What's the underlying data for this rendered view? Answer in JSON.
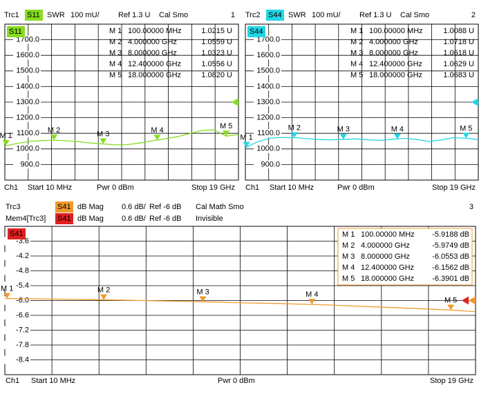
{
  "chart_data": [
    {
      "type": "line",
      "trace": "Trc1",
      "format": "SWR",
      "scale": "100 mU/",
      "ref": "Ref 1.3 U",
      "flags": "Cal Smo",
      "number": "1",
      "ref_value": 1300,
      "channel": "Ch1",
      "start": "Start 10 MHz",
      "power": "Pwr 0 dBm",
      "stop": "Stop 19 GHz",
      "xlim": [
        0.01,
        19
      ],
      "ylim": [
        800,
        1800
      ],
      "yticks": [
        {
          "value": 1700,
          "label": "1700.0"
        },
        {
          "value": 1600,
          "label": "1600.0"
        },
        {
          "value": 1500,
          "label": "1500.0"
        },
        {
          "value": 1400,
          "label": "1400.0"
        },
        {
          "value": 1300,
          "label": "1300.0"
        },
        {
          "value": 1200,
          "label": "1200.0"
        },
        {
          "value": 1100,
          "label": "1100.0"
        },
        {
          "value": 1000,
          "label": "1000.0"
        },
        {
          "value": 900,
          "label": "900.0"
        }
      ],
      "grid": true,
      "series": [
        {
          "name": "S11",
          "color": "#86dc1e",
          "x": [
            0.01,
            1,
            2,
            3,
            4,
            5,
            6,
            7,
            8,
            9,
            10,
            11,
            12,
            13,
            14,
            15,
            16,
            17,
            18,
            19
          ],
          "values": [
            1018,
            1035,
            1048,
            1054,
            1056,
            1052,
            1046,
            1038,
            1032,
            1026,
            1028,
            1038,
            1052,
            1064,
            1078,
            1098,
            1118,
            1122,
            1082,
            1092
          ]
        }
      ],
      "markers": [
        {
          "name": "M 1",
          "x": 0.1,
          "x_label": "100.00000 MHz",
          "value": 1021.5,
          "value_label": "1.0215 U"
        },
        {
          "name": "M 2",
          "x": 4,
          "x_label": "4.000000 GHz",
          "value": 1055.9,
          "value_label": "1.0559 U"
        },
        {
          "name": "M 3",
          "x": 8,
          "x_label": "8.000000 GHz",
          "value": 1032.3,
          "value_label": "1.0323 U"
        },
        {
          "name": "M 4",
          "x": 12.4,
          "x_label": "12.400000 GHz",
          "value": 1055.6,
          "value_label": "1.0556 U"
        },
        {
          "name": "M 5",
          "x": 18,
          "x_label": "18.000000 GHz",
          "value": 1082,
          "value_label": "1.0820 U"
        }
      ]
    },
    {
      "type": "line",
      "trace": "Trc2",
      "format": "SWR",
      "scale": "100 mU/",
      "ref": "Ref 1.3 U",
      "flags": "Cal Smo",
      "number": "2",
      "ref_value": 1300,
      "channel": "Ch1",
      "start": "Start 10 MHz",
      "power": "Pwr 0 dBm",
      "stop": "Stop 19 GHz",
      "xlim": [
        0.01,
        19
      ],
      "ylim": [
        800,
        1800
      ],
      "yticks": [
        {
          "value": 1700,
          "label": "1700.0"
        },
        {
          "value": 1600,
          "label": "1600.0"
        },
        {
          "value": 1500,
          "label": "1500.0"
        },
        {
          "value": 1400,
          "label": "1400.0"
        },
        {
          "value": 1300,
          "label": "1300.0"
        },
        {
          "value": 1200,
          "label": "1200.0"
        },
        {
          "value": 1100,
          "label": "1100.0"
        },
        {
          "value": 1000,
          "label": "1000.0"
        },
        {
          "value": 900,
          "label": "900.0"
        }
      ],
      "grid": true,
      "series": [
        {
          "name": "S44",
          "color": "#22d6e6",
          "x": [
            0.01,
            1,
            2,
            3,
            4,
            5,
            6,
            7,
            8,
            9,
            10,
            11,
            12,
            13,
            14,
            15,
            16,
            17,
            18,
            19
          ],
          "values": [
            1008,
            1045,
            1068,
            1074,
            1072,
            1066,
            1060,
            1058,
            1062,
            1064,
            1058,
            1055,
            1062,
            1068,
            1060,
            1048,
            1058,
            1072,
            1068,
            1060
          ]
        }
      ],
      "markers": [
        {
          "name": "M 1",
          "x": 0.1,
          "x_label": "100.00000 MHz",
          "value": 1008.8,
          "value_label": "1.0088 U"
        },
        {
          "name": "M 2",
          "x": 4,
          "x_label": "4.000000 GHz",
          "value": 1071.8,
          "value_label": "1.0718 U"
        },
        {
          "name": "M 3",
          "x": 8,
          "x_label": "8.000000 GHz",
          "value": 1061.8,
          "value_label": "1.0618 U"
        },
        {
          "name": "M 4",
          "x": 12.4,
          "x_label": "12.400000 GHz",
          "value": 1062.9,
          "value_label": "1.0629 U"
        },
        {
          "name": "M 5",
          "x": 18,
          "x_label": "18.000000 GHz",
          "value": 1068.3,
          "value_label": "1.0683 U"
        }
      ]
    },
    {
      "type": "line",
      "trace": "Trc3",
      "format": "dB Mag",
      "scale": "0.6 dB/",
      "ref": "Ref -6 dB",
      "flags": "Cal Math Smo",
      "number": "3",
      "ref_value": -6,
      "memory": {
        "trace": "Mem4[Trc3]",
        "param": "S41",
        "color": "#e02020",
        "format": "dB Mag",
        "scale": "0.6 dB/",
        "ref": "Ref -6 dB",
        "flags": "Invisible"
      },
      "channel": "Ch1",
      "start": "Start 10 MHz",
      "power": "Pwr 0 dBm",
      "stop": "Stop 19 GHz",
      "xlim": [
        0.01,
        19
      ],
      "ylim": [
        -9,
        -3
      ],
      "yticks": [
        -3.6,
        -4.2,
        -4.8,
        -5.4,
        {
          "value": -6,
          "label": "-6.0"
        },
        -6.6,
        -7.2,
        -7.8,
        -8.4
      ],
      "grid": true,
      "series": [
        {
          "name": "S41",
          "color": "#f09a2c",
          "x": [
            0.01,
            1,
            2,
            3,
            4,
            5,
            6,
            7,
            8,
            9,
            10,
            11,
            12,
            13,
            14,
            15,
            16,
            17,
            18,
            19
          ],
          "values": [
            -5.92,
            -5.93,
            -5.94,
            -5.96,
            -5.97,
            -5.99,
            -6.01,
            -6.03,
            -6.05,
            -6.08,
            -6.1,
            -6.12,
            -6.15,
            -6.18,
            -6.22,
            -6.26,
            -6.3,
            -6.34,
            -6.39,
            -6.45
          ]
        }
      ],
      "markers": [
        {
          "name": "M 1",
          "x": 0.1,
          "x_label": "100.00000 MHz",
          "value": -5.9188,
          "value_label": "-5.9188 dB"
        },
        {
          "name": "M 2",
          "x": 4,
          "x_label": "4.000000 GHz",
          "value": -5.9749,
          "value_label": "-5.9749 dB"
        },
        {
          "name": "M 3",
          "x": 8,
          "x_label": "8.000000 GHz",
          "value": -6.0553,
          "value_label": "-6.0553 dB"
        },
        {
          "name": "M 4",
          "x": 12.4,
          "x_label": "12.400000 GHz",
          "value": -6.1562,
          "value_label": "-6.1562 dB"
        },
        {
          "name": "M 5",
          "x": 18,
          "x_label": "18.000000 GHz",
          "value": -6.3901,
          "value_label": "-6.3901 dB"
        }
      ]
    }
  ]
}
